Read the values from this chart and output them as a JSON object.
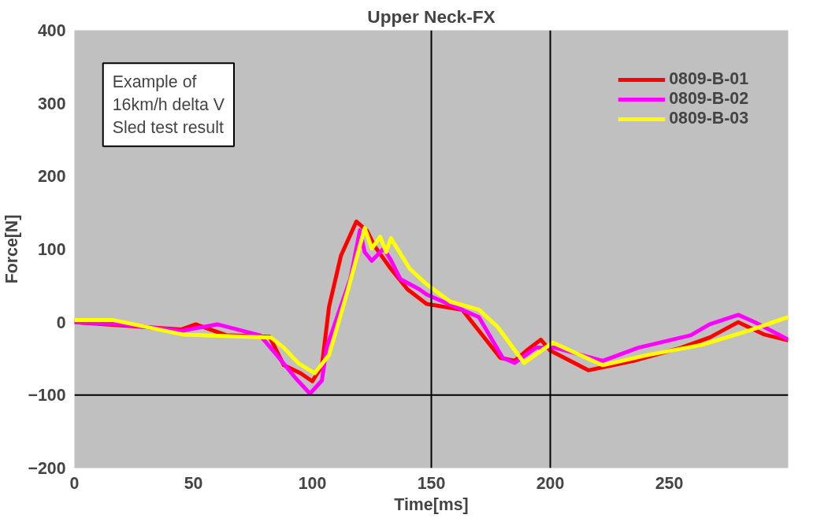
{
  "chart_data": {
    "type": "line",
    "title": "Upper Neck-FX",
    "xlabel": "Time[ms]",
    "ylabel": "Force[N]",
    "annotations": [
      "Example of\n16km/h delta V\nSled test result"
    ],
    "xlim": [
      0,
      300
    ],
    "xticks": [
      0,
      50,
      100,
      150,
      200,
      250
    ],
    "ylim": [
      -200,
      400
    ],
    "yticks": [
      -200,
      -100,
      0,
      100,
      200,
      300,
      400
    ],
    "grid": false,
    "legend": "top right",
    "line_style": "solid",
    "marker": "none",
    "ref_lines": [
      {
        "axis": "x",
        "value": 150,
        "color": "#000000"
      },
      {
        "axis": "x",
        "value": 200,
        "color": "#000000"
      },
      {
        "axis": "y",
        "value": -100,
        "color": "#000000"
      }
    ],
    "series": [
      {
        "name": "0809-B-01",
        "color": "#ff0000",
        "x": [
          0,
          45,
          51,
          64,
          82,
          88,
          95,
          100,
          104,
          107,
          112,
          118.5,
          123,
          126,
          133,
          140,
          148,
          163,
          179,
          185,
          190,
          196,
          200,
          216,
          235,
          255,
          267,
          279,
          290,
          300
        ],
        "values": [
          0,
          -10,
          -3,
          -18,
          -20,
          -59,
          -70,
          -81,
          -60,
          21,
          91,
          138,
          125,
          105,
          73,
          45,
          25,
          17,
          -49,
          -53,
          -39,
          -24,
          -39,
          -66,
          -53,
          -35,
          -21,
          0,
          -17,
          -25
        ]
      },
      {
        "name": "0809-B-02",
        "color": "#ff00ff",
        "x": [
          0,
          20,
          45,
          60,
          78,
          85,
          93,
          99,
          104,
          106,
          116,
          120,
          122,
          125,
          130,
          133,
          137,
          145,
          148,
          160,
          170,
          180,
          185,
          194,
          202,
          222,
          237,
          259,
          267,
          279,
          286,
          300
        ],
        "values": [
          0,
          -3,
          -12,
          -3,
          -18,
          -45,
          -77,
          -98,
          -80,
          -35,
          60,
          126,
          96,
          84,
          101,
          85,
          59,
          45,
          38,
          21,
          7,
          -49,
          -56,
          -35,
          -35,
          -53,
          -35,
          -18,
          -3,
          10,
          0,
          -24
        ]
      },
      {
        "name": "0809-B-03",
        "color": "#ffff00",
        "x": [
          0,
          16,
          45.6,
          82.6,
          88,
          94,
          101,
          107,
          115,
          122,
          125,
          128.5,
          131,
          133,
          141,
          148,
          158,
          170,
          178,
          189,
          201,
          222,
          241,
          264,
          284,
          300
        ],
        "values": [
          3,
          3,
          -17,
          -21,
          -35,
          -56,
          -70,
          -45,
          45,
          129,
          101,
          117,
          96,
          115,
          73,
          52,
          28,
          17,
          -7,
          -56,
          -28,
          -59,
          -45,
          -31,
          -11,
          7
        ]
      }
    ]
  }
}
